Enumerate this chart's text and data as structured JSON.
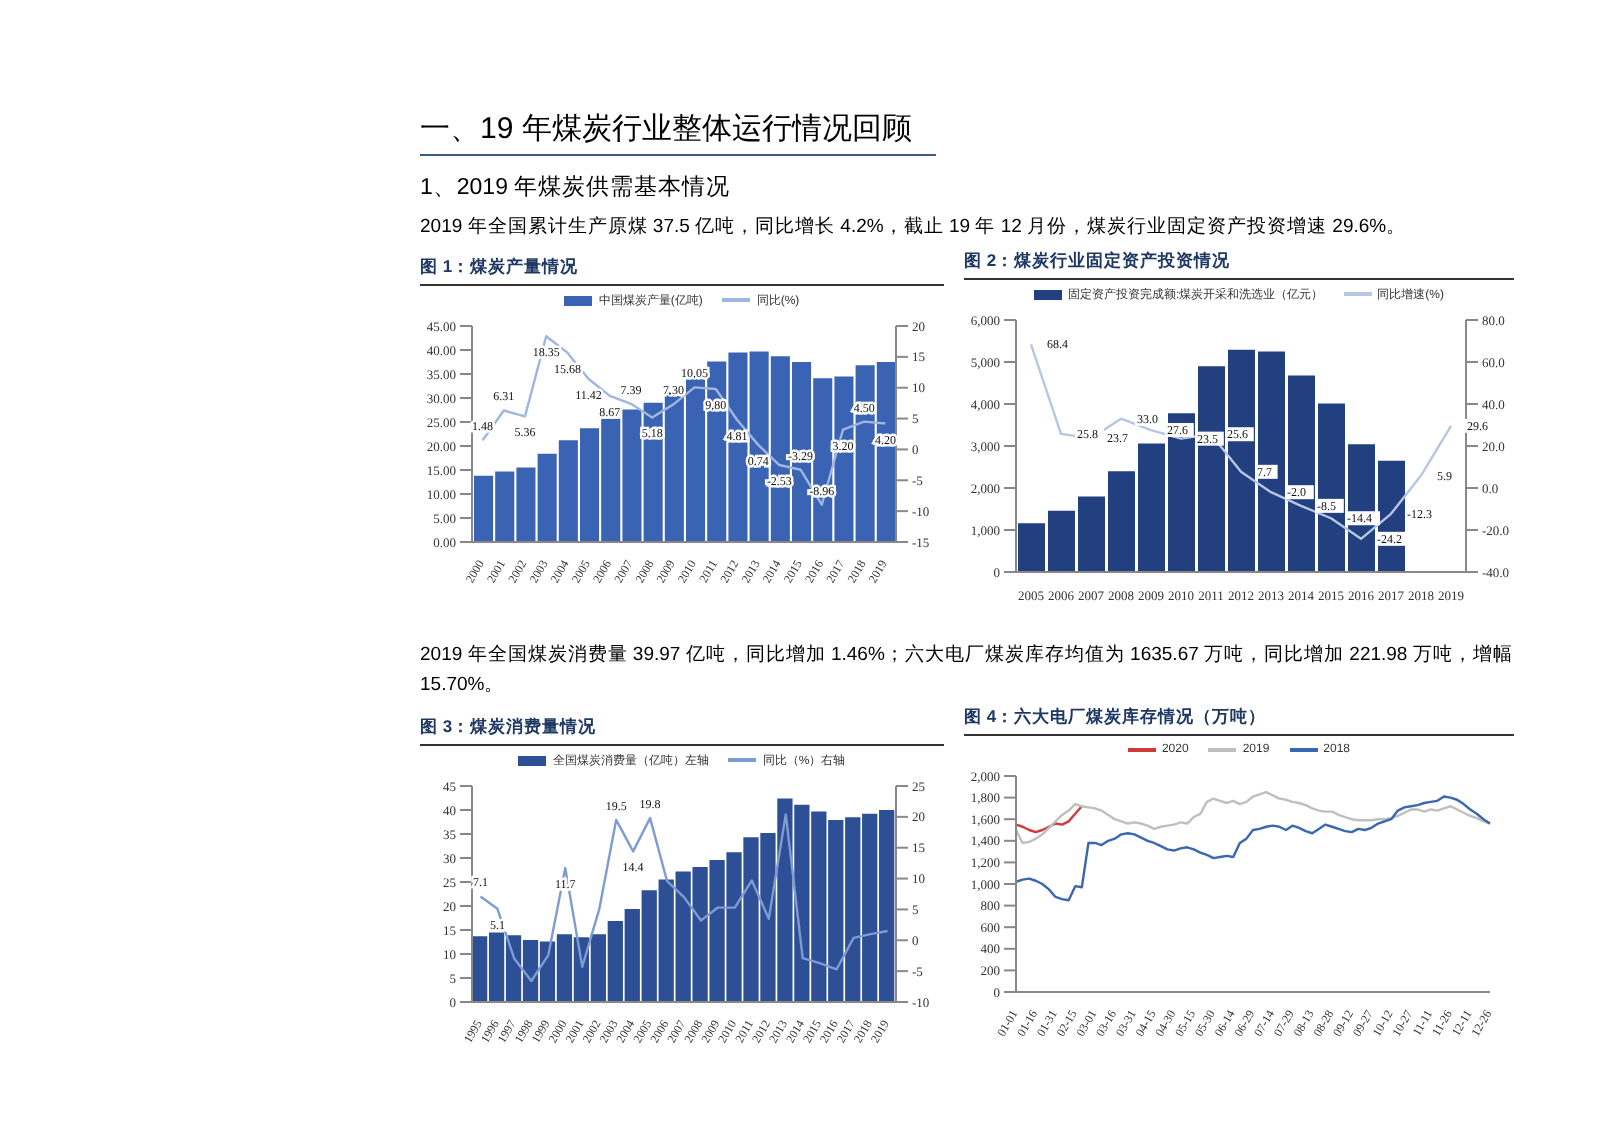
{
  "chart_data": [
    {
      "type": "bar",
      "title": "图 1：煤炭产量情况",
      "annotations": [
        "一、19 年煤炭行业整体运行情况回顾",
        "1、2019 年煤炭供需基本情况",
        "2019 年全国累计生产原煤 37.5 亿吨，同比增长 4.2%，截止 19 年 12 月份，煤炭行业固定资产投资增速 29.6%。"
      ],
      "legend": "top",
      "categories": [
        "2000",
        "2001",
        "2002",
        "2003",
        "2004",
        "2005",
        "2006",
        "2007",
        "2008",
        "2009",
        "2010",
        "2011",
        "2012",
        "2013",
        "2014",
        "2015",
        "2016",
        "2017",
        "2018",
        "2019"
      ],
      "series": [
        {
          "name": "中国煤炭产量(亿吨)",
          "type": "bar",
          "color": "#3a63b3",
          "values": [
            13.8,
            14.7,
            15.5,
            18.4,
            21.2,
            23.7,
            25.7,
            27.6,
            29.0,
            31.2,
            34.3,
            37.6,
            39.5,
            39.7,
            38.7,
            37.5,
            34.1,
            34.5,
            36.8,
            37.5
          ]
        },
        {
          "name": "同比(%)",
          "type": "line",
          "axis": "y2",
          "color": "#9fb6de",
          "values": [
            1.48,
            6.31,
            5.36,
            18.35,
            15.68,
            11.42,
            8.67,
            7.39,
            5.18,
            7.3,
            10.05,
            9.8,
            4.81,
            0.74,
            -2.53,
            -3.29,
            -8.96,
            3.2,
            4.5,
            4.2
          ],
          "value_labels": [
            "1.48",
            "6.31",
            "5.36",
            "18.35",
            "15.68",
            "11.42",
            "8.67",
            "7.39",
            "5.18",
            "7.30",
            "10.05",
            "9.80",
            "4.81",
            "0.74",
            "-2.53",
            "-3.29",
            "-8.96",
            "3.20",
            "4.50",
            "4.20"
          ]
        }
      ],
      "ylim": [
        0,
        45
      ],
      "yticks": [
        {
          "value": 0,
          "label": "0.00"
        },
        {
          "value": 5,
          "label": "5.00"
        },
        {
          "value": 10,
          "label": "10.00"
        },
        {
          "value": 15,
          "label": "15.00"
        },
        {
          "value": 20,
          "label": "20.00"
        },
        {
          "value": 25,
          "label": "25.00"
        },
        {
          "value": 30,
          "label": "30.00"
        },
        {
          "value": 35,
          "label": "35.00"
        },
        {
          "value": 40,
          "label": "40.00"
        },
        {
          "value": 45,
          "label": "45.00"
        }
      ],
      "y2lim": [
        -15,
        20
      ],
      "y2ticks": [
        -15,
        -10,
        -5,
        0,
        5,
        10,
        15,
        20
      ]
    },
    {
      "type": "bar",
      "title": "图 2：煤炭行业固定资产投资情况",
      "legend": "top",
      "categories": [
        "2005",
        "2006",
        "2007",
        "2008",
        "2009",
        "2010",
        "2011",
        "2012",
        "2013",
        "2014",
        "2015",
        "2016",
        "2017",
        "2018",
        "2019"
      ],
      "series": [
        {
          "name": "固定资产投资完成额:煤炭开采和洗选业（亿元）",
          "type": "bar",
          "color": "#223f80",
          "values": [
            1160,
            1460,
            1800,
            2400,
            3060,
            3780,
            4900,
            5290,
            5250,
            4680,
            4010,
            3040,
            2650,
            null,
            null
          ]
        },
        {
          "name": "同比增速(%)",
          "type": "line",
          "axis": "y2",
          "color": "#b7c6e3",
          "values": [
            68.4,
            25.8,
            23.7,
            33.0,
            27.6,
            23.5,
            25.6,
            7.7,
            -2.0,
            -8.5,
            -14.4,
            -24.2,
            -12.3,
            5.9,
            29.6
          ],
          "value_labels": [
            "68.4",
            "25.8",
            "23.7",
            "33.0",
            "27.6",
            "23.5",
            "25.6",
            "7.7",
            "-2.0",
            "-8.5",
            "-14.4",
            "-24.2",
            "-12.3",
            "5.9",
            "29.6"
          ]
        }
      ],
      "ylim": [
        0,
        6000
      ],
      "yticks": [
        0,
        {
          "value": 1000,
          "label": "1,000"
        },
        {
          "value": 2000,
          "label": "2,000"
        },
        {
          "value": 3000,
          "label": "3,000"
        },
        {
          "value": 4000,
          "label": "4,000"
        },
        {
          "value": 5000,
          "label": "5,000"
        },
        {
          "value": 6000,
          "label": "6,000"
        }
      ],
      "y2lim": [
        -40,
        80
      ],
      "y2ticks": [
        {
          "value": -40,
          "label": "-40.0"
        },
        {
          "value": -20,
          "label": "-20.0"
        },
        {
          "value": 0,
          "label": "0.0"
        },
        {
          "value": 20,
          "label": "20.0"
        },
        {
          "value": 40,
          "label": "40.0"
        },
        {
          "value": 60,
          "label": "60.0"
        },
        {
          "value": 80,
          "label": "80.0"
        }
      ]
    },
    {
      "type": "bar",
      "title": "图 3：煤炭消费量情况",
      "annotations": [
        "2019 年全国煤炭消费量 39.97 亿吨，同比增加 1.46%；六大电厂煤炭库存均值为 1635.67 万吨，同比增加 221.98 万吨，增幅 15.70%。"
      ],
      "legend": "top",
      "categories": [
        "1995",
        "1996",
        "1997",
        "1998",
        "1999",
        "2000",
        "2001",
        "2002",
        "2003",
        "2004",
        "2005",
        "2006",
        "2007",
        "2008",
        "2009",
        "2010",
        "2011",
        "2012",
        "2013",
        "2014",
        "2015",
        "2016",
        "2017",
        "2018",
        "2019"
      ],
      "series": [
        {
          "name": "全国煤炭消费量（亿吨）左轴",
          "type": "bar",
          "color": "#2c4f96",
          "values": [
            13.7,
            14.5,
            13.9,
            12.9,
            12.6,
            14.1,
            13.5,
            14.1,
            16.9,
            19.4,
            23.3,
            25.5,
            27.2,
            28.1,
            29.6,
            31.2,
            34.3,
            35.2,
            42.4,
            41.1,
            39.7,
            37.9,
            38.5,
            39.2,
            40.0
          ]
        },
        {
          "name": "同比（%）右轴",
          "type": "line",
          "axis": "y2",
          "color": "#7f9bd1",
          "values": [
            7.1,
            5.1,
            -3.0,
            -6.6,
            -2.4,
            11.7,
            -4.3,
            5.0,
            19.5,
            14.4,
            19.8,
            9.6,
            7.0,
            3.2,
            5.3,
            5.3,
            9.7,
            3.5,
            20.4,
            -2.9,
            -3.7,
            -4.7,
            0.4,
            1.0,
            1.5
          ],
          "value_labels": [
            "7.1",
            "5.1",
            null,
            null,
            null,
            "11.7",
            null,
            null,
            "19.5",
            "14.4",
            "19.8",
            null,
            null,
            null,
            null,
            null,
            null,
            null,
            null,
            null,
            null,
            null,
            null,
            null,
            null
          ]
        }
      ],
      "ylim": [
        0,
        45
      ],
      "yticks": [
        0,
        5,
        10,
        15,
        20,
        25,
        30,
        35,
        40,
        45
      ],
      "y2lim": [
        -10,
        25
      ],
      "y2ticks": [
        -10,
        -5,
        0,
        5,
        10,
        15,
        20,
        25
      ]
    },
    {
      "type": "line",
      "title": "图 4：六大电厂煤炭库存情况（万吨）",
      "legend": "top",
      "categories": [
        "01-01",
        null,
        null,
        "01-16",
        null,
        null,
        "01-31",
        null,
        null,
        "02-15",
        null,
        null,
        "03-01",
        null,
        null,
        "03-16",
        null,
        null,
        "03-31",
        null,
        null,
        "04-15",
        null,
        null,
        "04-30",
        null,
        null,
        "05-15",
        null,
        null,
        "05-30",
        null,
        null,
        "06-14",
        null,
        null,
        "06-29",
        null,
        null,
        "07-14",
        null,
        null,
        "07-29",
        null,
        null,
        "08-13",
        null,
        null,
        "08-28",
        null,
        null,
        "09-12",
        null,
        null,
        "09-27",
        null,
        null,
        "10-12",
        null,
        null,
        "10-27",
        null,
        null,
        "11-11",
        null,
        null,
        "11-26",
        null,
        null,
        "12-11",
        null,
        null,
        "12-26"
      ],
      "series": [
        {
          "name": "2020",
          "color": "#d03a3a",
          "values": [
            1550,
            1530,
            1500,
            1480,
            1500,
            1530,
            1560,
            1550,
            1580,
            1650,
            1720,
            null,
            null,
            null,
            null,
            null,
            null,
            null,
            null,
            null,
            null,
            null,
            null,
            null,
            null,
            null,
            null,
            null,
            null,
            null,
            null,
            null,
            null,
            null,
            null,
            null,
            null,
            null,
            null,
            null,
            null,
            null,
            null,
            null,
            null,
            null,
            null,
            null,
            null,
            null,
            null,
            null,
            null,
            null,
            null,
            null,
            null,
            null,
            null,
            null,
            null,
            null,
            null,
            null,
            null,
            null,
            null,
            null,
            null,
            null,
            null,
            null,
            null
          ]
        },
        {
          "name": "2019",
          "color": "#bfbfbf",
          "values": [
            1500,
            1380,
            1390,
            1420,
            1460,
            1520,
            1580,
            1640,
            1680,
            1740,
            1720,
            1710,
            1700,
            1680,
            1640,
            1600,
            1580,
            1560,
            1570,
            1560,
            1540,
            1510,
            1530,
            1540,
            1550,
            1570,
            1560,
            1620,
            1650,
            1760,
            1790,
            1770,
            1750,
            1770,
            1740,
            1760,
            1810,
            1830,
            1850,
            1820,
            1790,
            1780,
            1760,
            1750,
            1730,
            1700,
            1680,
            1670,
            1670,
            1640,
            1620,
            1600,
            1590,
            1590,
            1590,
            1600,
            1600,
            1610,
            1630,
            1660,
            1690,
            1690,
            1670,
            1690,
            1680,
            1700,
            1720,
            1690,
            1660,
            1630,
            1610,
            1580,
            1560
          ]
        },
        {
          "name": "2018",
          "color": "#3a67b0",
          "values": [
            1020,
            1040,
            1050,
            1030,
            1000,
            950,
            880,
            860,
            850,
            980,
            970,
            1380,
            1380,
            1360,
            1400,
            1420,
            1460,
            1470,
            1460,
            1430,
            1400,
            1380,
            1350,
            1320,
            1310,
            1330,
            1340,
            1320,
            1290,
            1270,
            1240,
            1250,
            1260,
            1250,
            1380,
            1420,
            1500,
            1510,
            1530,
            1540,
            1530,
            1500,
            1540,
            1520,
            1490,
            1470,
            1510,
            1550,
            1530,
            1510,
            1490,
            1480,
            1510,
            1500,
            1520,
            1560,
            1580,
            1600,
            1680,
            1710,
            1720,
            1730,
            1750,
            1760,
            1770,
            1810,
            1800,
            1780,
            1740,
            1690,
            1650,
            1600,
            1560
          ]
        }
      ],
      "ylim": [
        0,
        2000
      ],
      "yticks": [
        0,
        200,
        400,
        600,
        800,
        {
          "value": 1000,
          "label": "1,000"
        },
        {
          "value": 1200,
          "label": "1,200"
        },
        {
          "value": 1400,
          "label": "1,400"
        },
        {
          "value": 1600,
          "label": "1,600"
        },
        {
          "value": 1800,
          "label": "1,800"
        },
        {
          "value": 2000,
          "label": "2,000"
        }
      ]
    }
  ]
}
